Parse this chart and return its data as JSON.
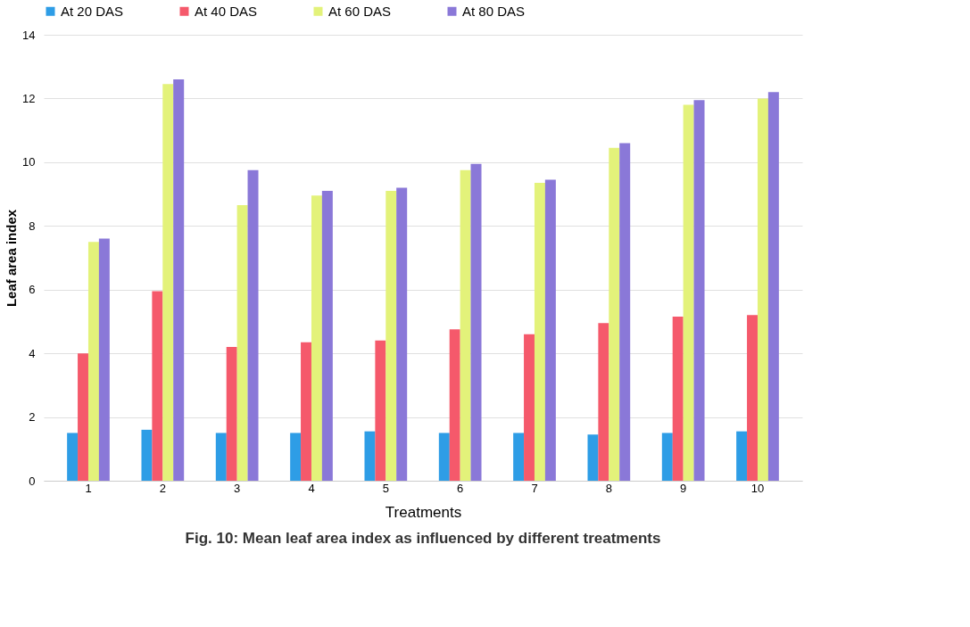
{
  "chart_data": {
    "type": "bar",
    "title": "Fig. 10: Mean leaf area index as influenced by different treatments",
    "xlabel": "Treatments",
    "ylabel": "Leaf area index",
    "categories": [
      "1",
      "2",
      "3",
      "4",
      "5",
      "6",
      "7",
      "8",
      "9",
      "10"
    ],
    "series": [
      {
        "name": "At 20 DAS",
        "color": "#2e9de6",
        "values": [
          1.5,
          1.6,
          1.5,
          1.5,
          1.55,
          1.5,
          1.5,
          1.45,
          1.5,
          1.55
        ]
      },
      {
        "name": "At 40 DAS",
        "color": "#f5596b",
        "values": [
          4.0,
          5.95,
          4.2,
          4.35,
          4.4,
          4.75,
          4.6,
          4.95,
          5.15,
          5.2
        ]
      },
      {
        "name": "At 60 DAS",
        "color": "#e3f27a",
        "values": [
          7.5,
          12.45,
          8.65,
          8.95,
          9.1,
          9.75,
          9.35,
          10.45,
          11.8,
          12.0
        ]
      },
      {
        "name": "At 80 DAS",
        "color": "#8a78d8",
        "values": [
          7.6,
          12.6,
          9.75,
          9.1,
          9.2,
          9.95,
          9.45,
          10.6,
          11.95,
          12.2
        ]
      }
    ],
    "ylim": [
      0,
      14
    ],
    "yticks": [
      0,
      2,
      4,
      6,
      8,
      10,
      12,
      14
    ],
    "grid": "y",
    "legend": "top"
  }
}
